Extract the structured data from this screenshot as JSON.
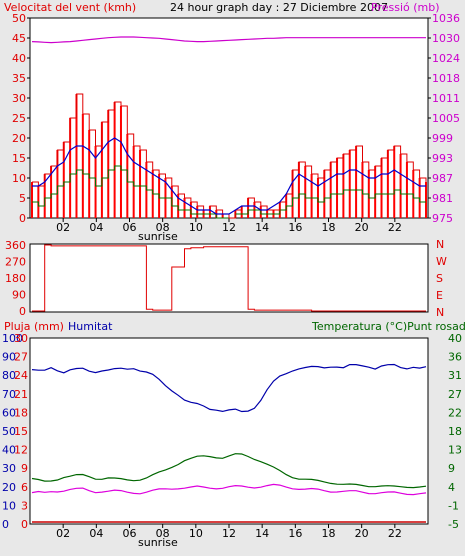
{
  "colors": {
    "wind": "#e00000",
    "gust": "#ff0000",
    "gust_bar": "#ff0000",
    "avg": "#0000cc",
    "green": "#007700",
    "pressure": "#cc00cc",
    "temp": "#006600",
    "dew": "#dd00dd",
    "humidity": "#0000aa",
    "rain": "#cc0000",
    "frame": "#000000",
    "panel": "#ffffff",
    "bg": "#e8e8e8"
  },
  "chart_data": [
    {
      "type": "line",
      "title": "24 hour graph day : 27 Diciembre 2007",
      "left_label": "Velocitat del vent (kmh)",
      "right_label": "Pressió (mb)",
      "x_ticks": [
        "02",
        "04",
        "06",
        "08",
        "10",
        "12",
        "14",
        "16",
        "18",
        "20",
        "22"
      ],
      "x_annotation": "sunrise",
      "y_left_ticks": [
        0,
        5,
        10,
        15,
        20,
        25,
        30,
        35,
        40,
        45,
        50
      ],
      "y_right_ticks": [
        975,
        981,
        987,
        993,
        999,
        1005,
        1011,
        1018,
        1024,
        1030,
        1036
      ],
      "ylim_left": [
        0,
        50
      ],
      "ylim_right": [
        975,
        1036
      ],
      "series": [
        {
          "name": "Velocitat del vent (kmh)",
          "kind": "gust",
          "values": [
            9,
            8,
            11,
            13,
            17,
            19,
            25,
            31,
            26,
            22,
            18,
            24,
            27,
            29,
            28,
            21,
            18,
            17,
            14,
            12,
            11,
            10,
            8,
            6,
            5,
            4,
            3,
            2,
            3,
            2,
            1,
            0,
            2,
            3,
            5,
            4,
            3,
            2,
            2,
            4,
            6,
            12,
            14,
            13,
            11,
            10,
            12,
            14,
            15,
            16,
            17,
            18,
            14,
            12,
            13,
            15,
            17,
            18,
            16,
            14,
            12,
            10,
            9
          ]
        },
        {
          "name": "",
          "kind": "avg",
          "values": [
            8,
            8,
            9,
            11,
            13,
            14,
            17,
            18,
            18,
            17,
            15,
            17,
            19,
            20,
            19,
            16,
            14,
            13,
            12,
            11,
            10,
            9,
            7,
            5,
            4,
            3,
            2,
            2,
            2,
            1,
            1,
            1,
            2,
            3,
            3,
            3,
            2,
            2,
            3,
            4,
            6,
            9,
            11,
            10,
            9,
            8,
            9,
            10,
            11,
            11,
            12,
            12,
            11,
            10,
            10,
            11,
            11,
            12,
            11,
            10,
            9,
            8,
            8
          ]
        },
        {
          "name": "",
          "kind": "low",
          "values": [
            4,
            3,
            5,
            6,
            8,
            9,
            11,
            12,
            11,
            10,
            8,
            10,
            12,
            13,
            12,
            9,
            8,
            8,
            7,
            6,
            5,
            5,
            3,
            2,
            2,
            1,
            1,
            1,
            1,
            0,
            0,
            0,
            1,
            1,
            2,
            2,
            1,
            1,
            1,
            2,
            3,
            5,
            6,
            5,
            5,
            4,
            5,
            6,
            6,
            7,
            7,
            7,
            6,
            5,
            6,
            6,
            6,
            7,
            6,
            6,
            5,
            4,
            4
          ]
        },
        {
          "name": "Pressió (mb)",
          "kind": "pressure",
          "values": [
            1028.8,
            1028.7,
            1028.6,
            1028.5,
            1028.6,
            1028.7,
            1028.8,
            1029.0,
            1029.2,
            1029.4,
            1029.6,
            1029.8,
            1030.0,
            1030.1,
            1030.2,
            1030.2,
            1030.2,
            1030.1,
            1030.0,
            1029.9,
            1029.8,
            1029.6,
            1029.4,
            1029.2,
            1029.0,
            1028.9,
            1028.8,
            1028.8,
            1028.9,
            1029.0,
            1029.1,
            1029.2,
            1029.3,
            1029.4,
            1029.5,
            1029.6,
            1029.7,
            1029.8,
            1029.8,
            1029.9,
            1030.0,
            1030.0,
            1030.0,
            1030.0,
            1030.0,
            1030.0,
            1030.0,
            1030.0,
            1030.0,
            1030.0,
            1030.0,
            1030.0,
            1030.0,
            1030.0,
            1030.0,
            1030.0,
            1030.0,
            1030.0,
            1030.0,
            1030.0,
            1030.0,
            1030.0,
            1030.0
          ]
        }
      ]
    },
    {
      "type": "line",
      "y_left_ticks": [
        0,
        90,
        180,
        270,
        360
      ],
      "y_right_ticks": [
        "N",
        "E",
        "S",
        "W",
        "N"
      ],
      "ylim": [
        0,
        360
      ],
      "series": [
        {
          "name": "",
          "kind": "direction",
          "values": [
            0,
            0,
            360,
            355,
            355,
            355,
            355,
            355,
            355,
            355,
            355,
            355,
            355,
            355,
            355,
            355,
            355,
            355,
            10,
            5,
            5,
            5,
            240,
            240,
            340,
            345,
            345,
            350,
            350,
            350,
            350,
            350,
            350,
            350,
            10,
            5,
            5,
            5,
            5,
            5,
            5,
            5,
            5,
            5,
            0,
            0,
            0,
            0,
            0,
            0,
            0,
            0,
            0,
            0,
            0,
            0,
            0,
            0,
            0,
            0,
            0,
            0,
            0
          ]
        }
      ]
    },
    {
      "type": "line",
      "left_label": "Pluja (mm)",
      "mid_label": "Humitat",
      "right_label": "Temperatura (°C)Punt rosada",
      "x_ticks": [
        "02",
        "04",
        "06",
        "08",
        "10",
        "12",
        "14",
        "16",
        "18",
        "20",
        "22"
      ],
      "x_annotation": "sunrise",
      "y_rain_ticks": [
        0,
        3,
        6,
        9,
        12,
        15,
        18,
        21,
        24,
        27,
        30
      ],
      "y_hum_ticks": [
        0,
        10,
        20,
        30,
        40,
        50,
        60,
        70,
        80,
        90,
        100
      ],
      "y_temp_ticks": [
        -5,
        -1,
        4,
        9,
        13,
        18,
        22,
        27,
        31,
        36,
        40
      ],
      "ylim_hum": [
        0,
        100
      ],
      "ylim_temp": [
        -5,
        40
      ],
      "series": [
        {
          "name": "Humitat",
          "kind": "humidity",
          "values": [
            83,
            82,
            82,
            84,
            83,
            82,
            83,
            83,
            83,
            82,
            82,
            83,
            83,
            83,
            83,
            83,
            84,
            83,
            82,
            80,
            77,
            74,
            72,
            70,
            67,
            65,
            64,
            63,
            62,
            62,
            61,
            61,
            61,
            60,
            61,
            63,
            67,
            72,
            76,
            79,
            81,
            83,
            84,
            84,
            84,
            84,
            84,
            85,
            85,
            84,
            85,
            85,
            85,
            85,
            84,
            85,
            85,
            85,
            84,
            84,
            85,
            84,
            84
          ]
        },
        {
          "name": "Temperatura (°C)",
          "kind": "temp",
          "values": [
            6.0,
            5.6,
            5.2,
            5.4,
            5.8,
            6.4,
            6.6,
            6.8,
            6.8,
            6.4,
            6.0,
            6.0,
            6.2,
            6.0,
            5.8,
            5.6,
            5.6,
            5.8,
            6.2,
            6.8,
            7.4,
            8.0,
            8.8,
            9.6,
            10.4,
            10.8,
            11.2,
            11.4,
            11.4,
            11.2,
            11.0,
            11.4,
            11.8,
            11.8,
            11.4,
            10.8,
            10.2,
            9.4,
            8.6,
            7.8,
            7.0,
            6.4,
            6.0,
            5.8,
            5.6,
            5.4,
            5.2,
            5.0,
            4.8,
            4.6,
            4.5,
            4.4,
            4.3,
            4.2,
            4.2,
            4.2,
            4.1,
            4.0,
            4.0,
            4.0,
            4.0,
            4.0,
            4.0
          ]
        },
        {
          "name": "Punt rosada",
          "kind": "dew",
          "values": [
            2.6,
            2.6,
            2.4,
            2.8,
            3.0,
            3.2,
            3.4,
            3.4,
            3.4,
            3.0,
            2.8,
            3.0,
            3.0,
            3.0,
            2.8,
            2.6,
            2.6,
            2.6,
            2.8,
            3.0,
            3.2,
            3.4,
            3.6,
            3.8,
            3.8,
            3.8,
            3.9,
            3.8,
            3.8,
            3.8,
            3.8,
            3.9,
            4.0,
            4.0,
            4.0,
            4.0,
            4.1,
            4.2,
            4.3,
            4.2,
            4.0,
            3.8,
            3.6,
            3.4,
            3.3,
            3.2,
            3.1,
            3.0,
            3.0,
            2.9,
            2.8,
            2.8,
            2.7,
            2.6,
            2.6,
            2.6,
            2.5,
            2.5,
            2.4,
            2.4,
            2.4,
            2.4,
            2.3
          ]
        },
        {
          "name": "Pluja (mm)",
          "kind": "rain",
          "values": [
            0,
            0,
            0,
            0,
            0,
            0,
            0,
            0,
            0,
            0,
            0,
            0,
            0,
            0,
            0,
            0,
            0,
            0,
            0,
            0,
            0,
            0,
            0,
            0,
            0,
            0,
            0,
            0,
            0,
            0,
            0,
            0,
            0,
            0,
            0,
            0,
            0,
            0,
            0,
            0,
            0,
            0,
            0,
            0,
            0,
            0,
            0,
            0,
            0,
            0,
            0,
            0,
            0,
            0,
            0,
            0,
            0,
            0,
            0,
            0,
            0,
            0,
            0
          ]
        }
      ]
    }
  ]
}
